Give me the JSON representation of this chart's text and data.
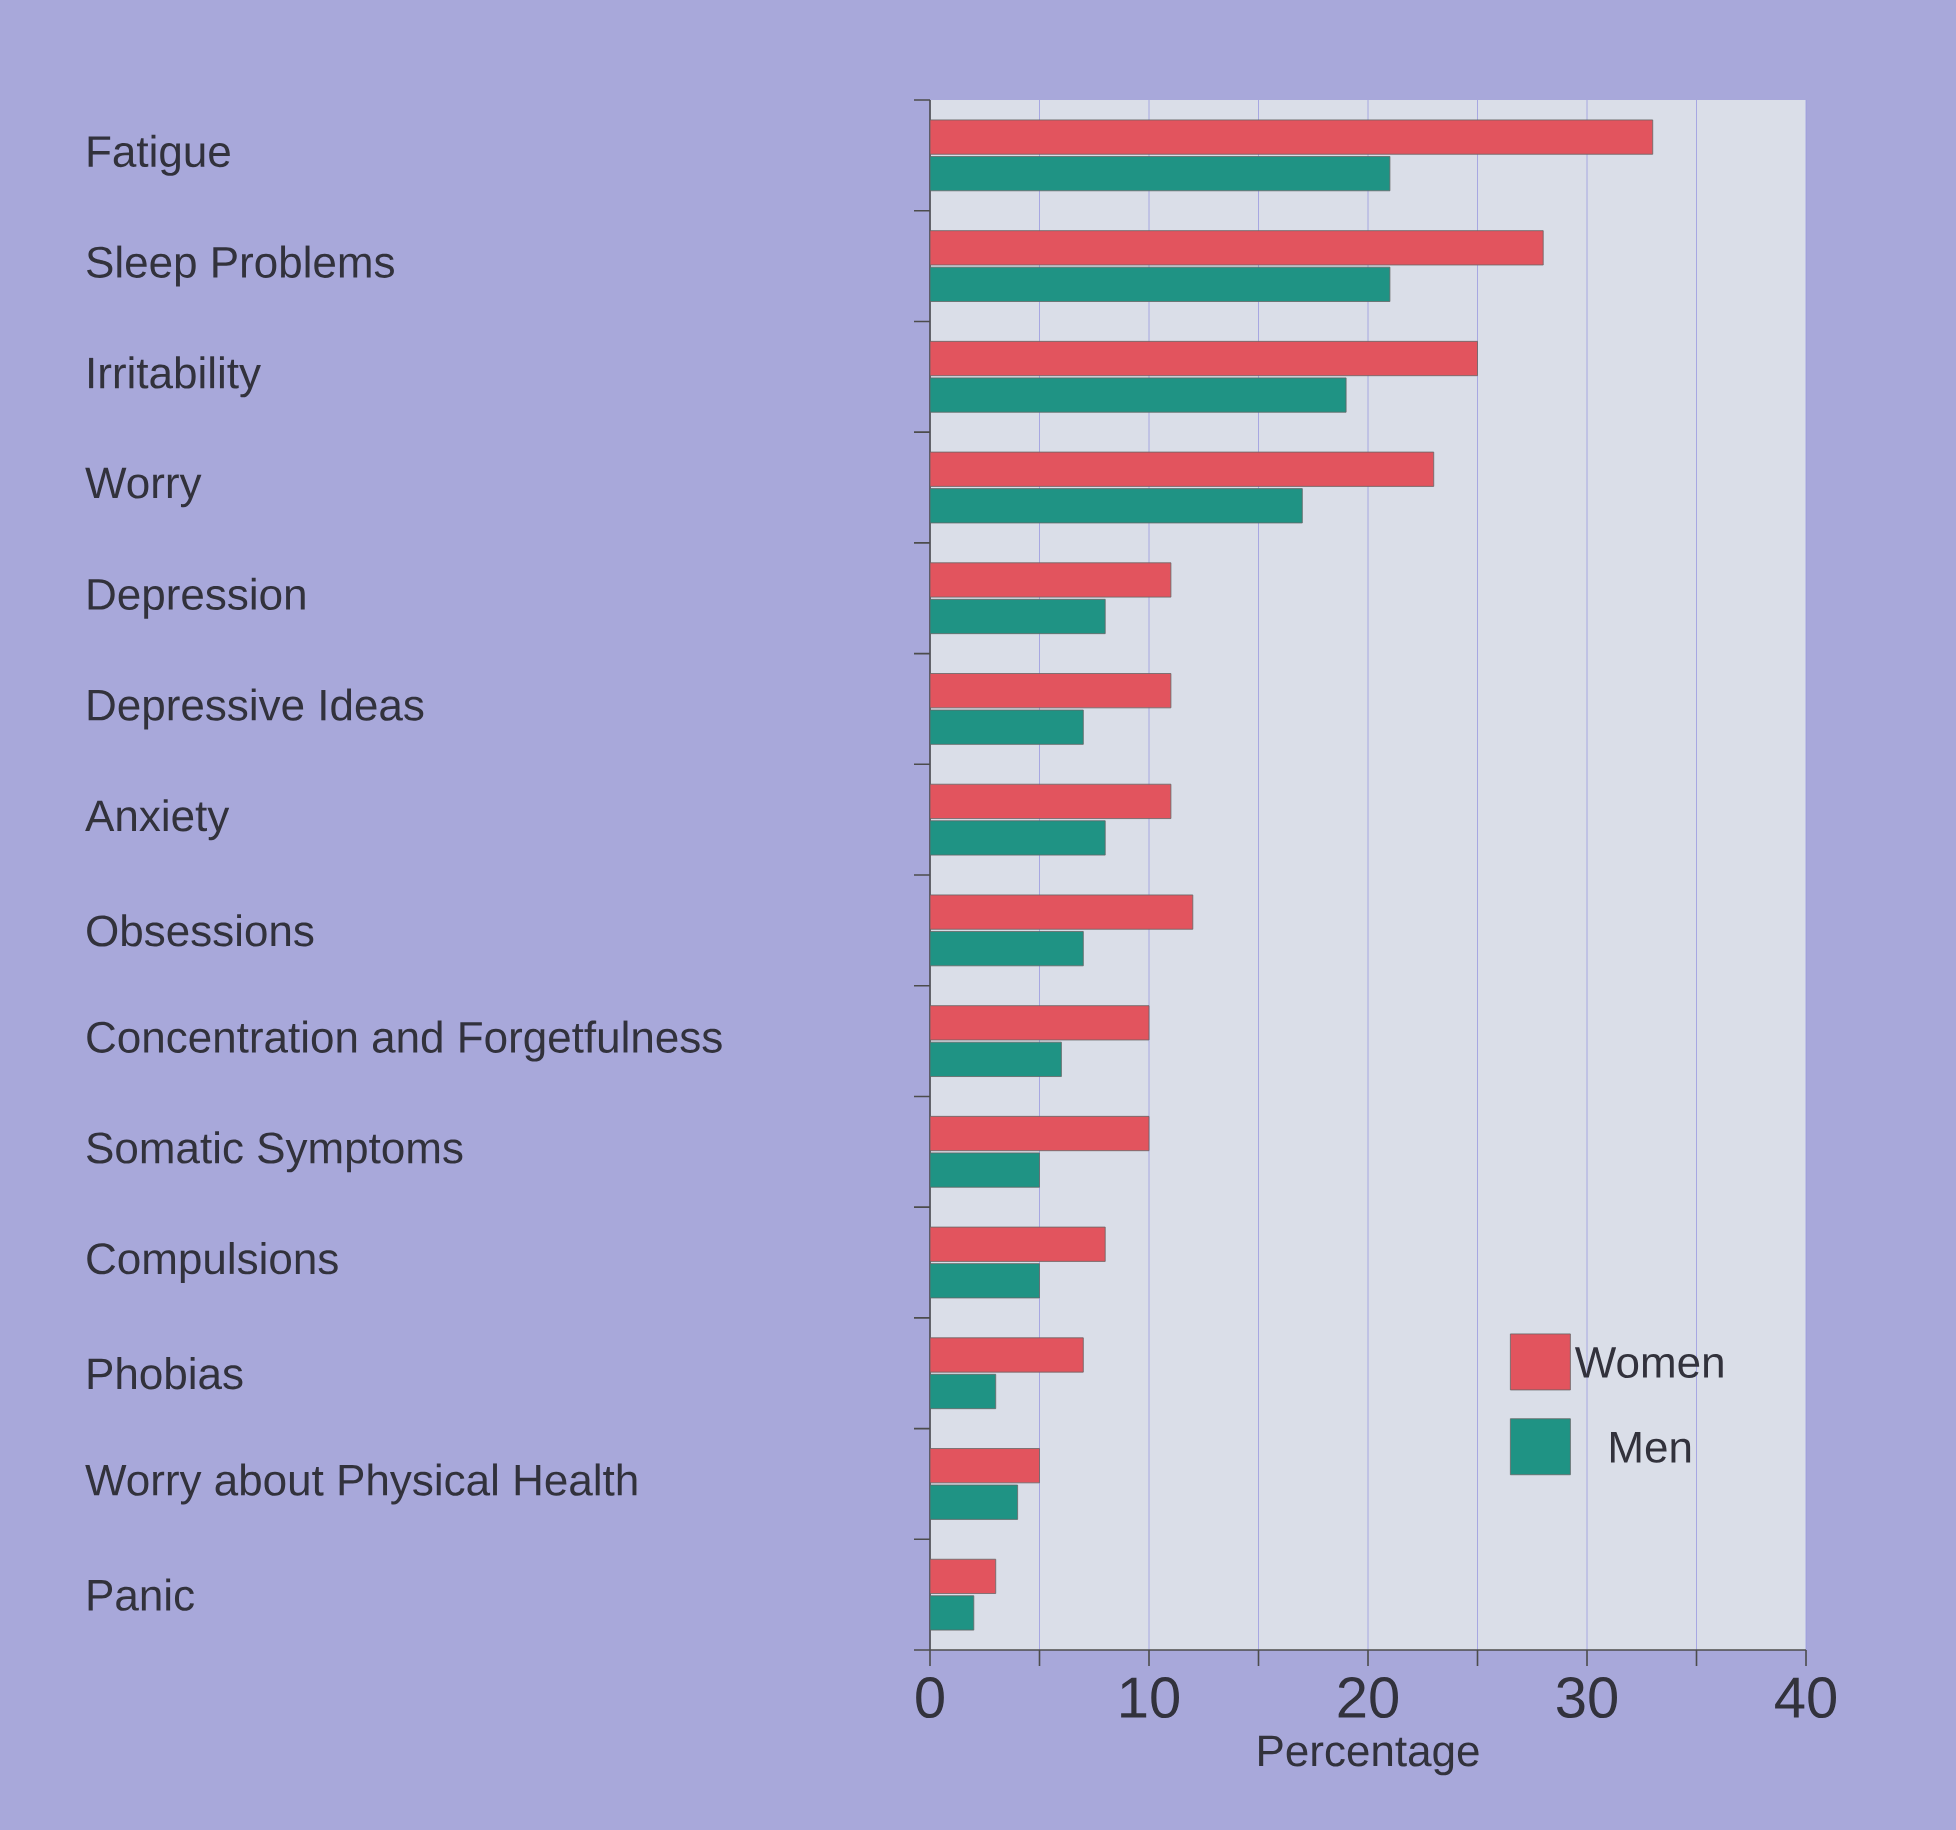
{
  "chart_data": {
    "type": "bar",
    "orientation": "horizontal",
    "xlabel": "Percentage",
    "categories": [
      "Fatigue",
      "Sleep Problems",
      "Irritability",
      "Worry",
      "Depression",
      "Depressive Ideas",
      "Anxiety",
      "Obsessions",
      "Concentration and Forgetfulness",
      "Somatic Symptoms",
      "Compulsions",
      "Phobias",
      "Worry about Physical Health",
      "Panic"
    ],
    "series": [
      {
        "name": "Women",
        "color": "#e2545e",
        "values": [
          33,
          28,
          25,
          23,
          11,
          11,
          11,
          12,
          10,
          10,
          8,
          7,
          5,
          3
        ]
      },
      {
        "name": "Men",
        "color": "#1f9384",
        "values": [
          21,
          21,
          19,
          17,
          8,
          7,
          8,
          7,
          6,
          5,
          5,
          3,
          4,
          2
        ]
      }
    ],
    "xlim": [
      0,
      40
    ],
    "xticks": [
      0,
      {
        "value": 5,
        "label": null
      },
      10,
      {
        "value": 15,
        "label": null
      },
      20,
      {
        "value": 25,
        "label": null
      },
      30,
      {
        "value": 35,
        "label": null
      },
      40
    ],
    "grid": "x",
    "legend": "bottom right"
  }
}
